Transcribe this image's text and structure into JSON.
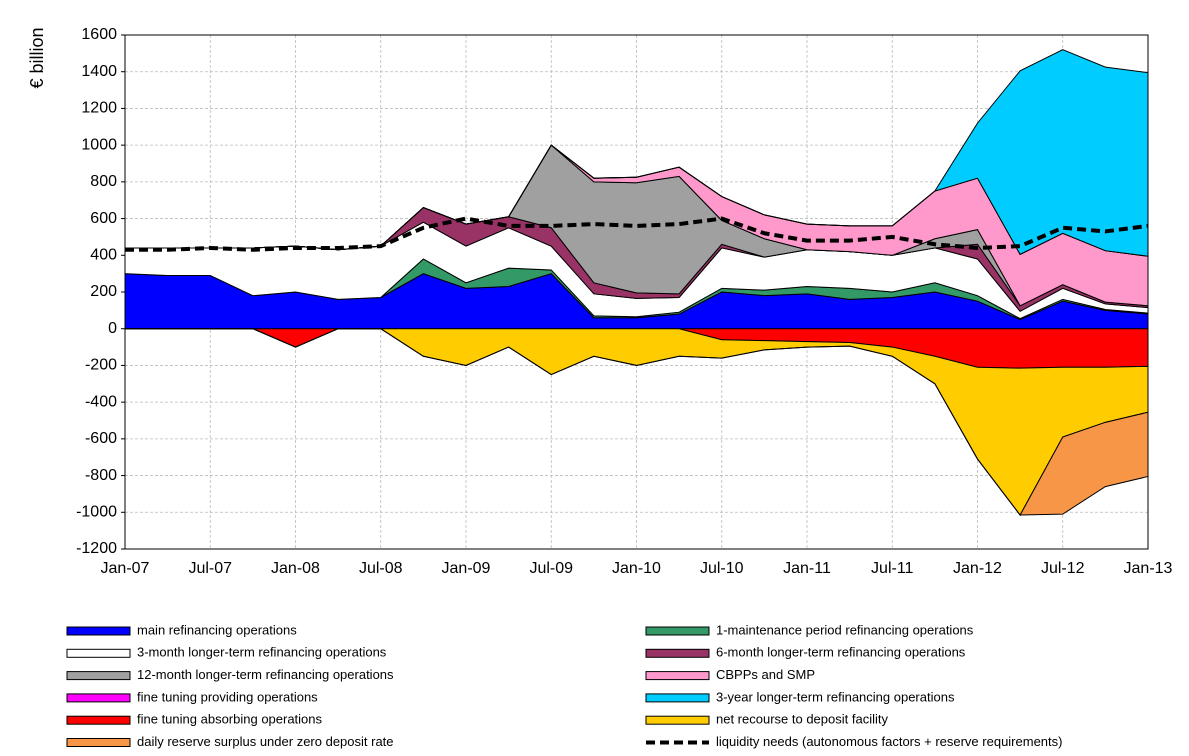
{
  "chart_data": {
    "type": "area",
    "y_label": "€ billion",
    "categories": [
      "Jan-07",
      null,
      "Jul-07",
      null,
      "Jan-08",
      null,
      "Jul-08",
      null,
      "Jan-09",
      null,
      "Jul-09",
      null,
      "Jan-10",
      null,
      "Jul-10",
      null,
      "Jan-11",
      null,
      "Jul-11",
      null,
      "Jan-12",
      null,
      "Jul-12",
      null,
      "Jan-13"
    ],
    "ylim": [
      -1200,
      1600
    ],
    "yticks": [
      -1200,
      -1000,
      -800,
      -600,
      -400,
      -200,
      0,
      200,
      400,
      600,
      800,
      1000,
      1200,
      1400,
      1600
    ],
    "grid": true,
    "series": [
      {
        "name": "main refinancing operations",
        "color": "#0000ff",
        "values": [
          300,
          290,
          290,
          180,
          200,
          160,
          170,
          300,
          220,
          230,
          300,
          60,
          60,
          80,
          200,
          180,
          190,
          160,
          170,
          200,
          150,
          50,
          150,
          100,
          80
        ]
      },
      {
        "name": "1-maintenance period refinancing operations",
        "color": "#339966",
        "values": [
          0,
          0,
          0,
          0,
          0,
          0,
          0,
          80,
          30,
          100,
          20,
          10,
          5,
          10,
          20,
          30,
          40,
          60,
          30,
          50,
          30,
          5,
          10,
          5,
          5
        ]
      },
      {
        "name": "3-month longer-term refinancing operations",
        "color": "#ffffff",
        "values": [
          140,
          150,
          150,
          260,
          250,
          270,
          280,
          200,
          200,
          220,
          130,
          120,
          100,
          80,
          220,
          180,
          200,
          200,
          200,
          190,
          200,
          40,
          60,
          30,
          30
        ]
      },
      {
        "name": "6-month longer-term refinancing operations",
        "color": "#993366",
        "values": [
          0,
          0,
          0,
          0,
          0,
          0,
          0,
          80,
          120,
          60,
          100,
          60,
          30,
          20,
          20,
          0,
          0,
          0,
          0,
          0,
          80,
          30,
          20,
          10,
          10
        ]
      },
      {
        "name": "12-month longer-term refinancing operations",
        "color": "#a0a0a0",
        "values": [
          0,
          0,
          0,
          0,
          0,
          0,
          0,
          0,
          0,
          0,
          450,
          550,
          600,
          640,
          130,
          100,
          0,
          0,
          0,
          50,
          80,
          0,
          0,
          0,
          0
        ]
      },
      {
        "name": "CBPPs and SMP",
        "color": "#ff99cc",
        "values": [
          0,
          0,
          0,
          0,
          0,
          0,
          0,
          0,
          0,
          0,
          0,
          20,
          30,
          50,
          130,
          130,
          140,
          140,
          160,
          260,
          280,
          280,
          280,
          280,
          270
        ]
      },
      {
        "name": "fine tuning providing operations",
        "color": "#ff00ff",
        "values": [
          0,
          0,
          0,
          0,
          0,
          0,
          0,
          0,
          0,
          0,
          0,
          0,
          0,
          0,
          0,
          0,
          0,
          0,
          0,
          0,
          0,
          0,
          0,
          0,
          0
        ]
      },
      {
        "name": "3-year longer-term refinancing operations",
        "color": "#00ccff",
        "values": [
          0,
          0,
          0,
          0,
          0,
          0,
          0,
          0,
          0,
          0,
          0,
          0,
          0,
          0,
          0,
          0,
          0,
          0,
          0,
          0,
          300,
          1000,
          1000,
          1000,
          1000
        ]
      },
      {
        "name": "fine tuning absorbing operations",
        "color": "#ff0000",
        "values": [
          0,
          0,
          0,
          0,
          -100,
          0,
          0,
          0,
          0,
          0,
          0,
          0,
          0,
          0,
          -60,
          -65,
          -70,
          -75,
          -100,
          -150,
          -210,
          -215,
          -210,
          -210,
          -205
        ]
      },
      {
        "name": "net recourse to deposit facility",
        "color": "#ffcc00",
        "values": [
          0,
          0,
          0,
          0,
          0,
          0,
          0,
          -150,
          -200,
          -100,
          -250,
          -150,
          -200,
          -150,
          -100,
          -50,
          -30,
          -20,
          -50,
          -150,
          -500,
          -800,
          -380,
          -300,
          -250
        ]
      },
      {
        "name": "daily reserve surplus under zero deposit rate",
        "color": "#f79646",
        "values": [
          0,
          0,
          0,
          0,
          0,
          0,
          0,
          0,
          0,
          0,
          0,
          0,
          0,
          0,
          0,
          0,
          0,
          0,
          0,
          0,
          0,
          0,
          -420,
          -350,
          -350
        ]
      },
      {
        "name": "liquidity needs (autonomous factors + reserve requirements)",
        "color": "#000000",
        "type": "line",
        "dashed": true,
        "values": [
          430,
          430,
          440,
          430,
          440,
          440,
          450,
          550,
          600,
          560,
          560,
          570,
          560,
          570,
          600,
          520,
          480,
          480,
          500,
          460,
          440,
          450,
          550,
          530,
          560
        ]
      }
    ]
  }
}
